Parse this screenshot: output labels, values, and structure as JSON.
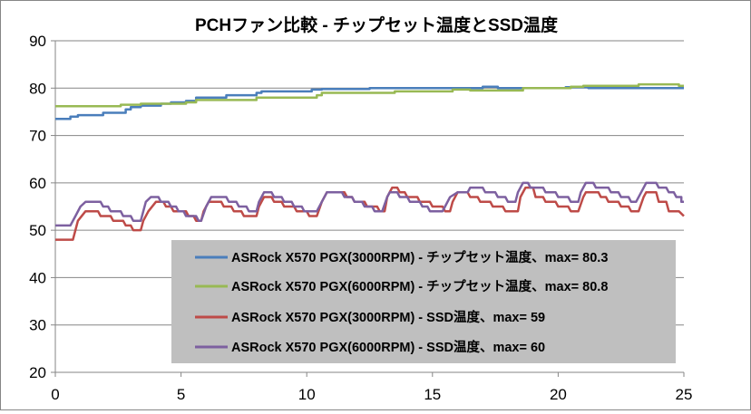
{
  "chart_data": {
    "type": "line",
    "title": "PCHファン比較 - チップセット温度とSSD温度",
    "xlabel": "",
    "ylabel": "",
    "xlim": [
      0,
      25
    ],
    "ylim": [
      20,
      90
    ],
    "x_ticks": [
      "0",
      "5",
      "10",
      "15",
      "20",
      "25"
    ],
    "y_ticks": [
      "20",
      "30",
      "40",
      "50",
      "60",
      "70",
      "80",
      "90"
    ],
    "grid": "horizontal",
    "legend_position": "bottom-right-inside",
    "series": [
      {
        "name": "ASRock X570 PGX(3000RPM) - チップセット温度、max= 80.3",
        "color": "#4a7ebb",
        "points": [
          [
            0,
            73.5
          ],
          [
            0.6,
            73.5
          ],
          [
            0.6,
            74
          ],
          [
            0.9,
            74
          ],
          [
            0.9,
            74.3
          ],
          [
            1.9,
            74.3
          ],
          [
            1.9,
            74.8
          ],
          [
            2.8,
            74.8
          ],
          [
            2.8,
            75.5
          ],
          [
            3.0,
            75.5
          ],
          [
            3.0,
            76
          ],
          [
            3.4,
            76
          ],
          [
            3.4,
            76.3
          ],
          [
            4.2,
            76.3
          ],
          [
            4.2,
            76.7
          ],
          [
            4.6,
            76.7
          ],
          [
            4.6,
            77
          ],
          [
            5.2,
            77
          ],
          [
            5.2,
            77.3
          ],
          [
            5.6,
            77.3
          ],
          [
            5.6,
            78
          ],
          [
            6.8,
            78
          ],
          [
            6.8,
            78.5
          ],
          [
            8.0,
            78.5
          ],
          [
            8.0,
            79
          ],
          [
            8.2,
            79
          ],
          [
            8.2,
            79.3
          ],
          [
            10.2,
            79.3
          ],
          [
            10.2,
            79.7
          ],
          [
            10.6,
            79.7
          ],
          [
            10.6,
            79.8
          ],
          [
            12.5,
            79.8
          ],
          [
            12.5,
            80
          ],
          [
            17.0,
            80
          ],
          [
            17.0,
            80.3
          ],
          [
            17.6,
            80.3
          ],
          [
            17.6,
            80
          ],
          [
            20.3,
            80
          ],
          [
            20.3,
            80.2
          ],
          [
            21.2,
            80.2
          ],
          [
            21.2,
            80
          ],
          [
            25,
            80
          ]
        ]
      },
      {
        "name": "ASRock X570 PGX(6000RPM) - チップセット温度、max= 80.8",
        "color": "#98b954",
        "points": [
          [
            0,
            76.2
          ],
          [
            2.6,
            76.2
          ],
          [
            2.6,
            76.5
          ],
          [
            3.4,
            76.5
          ],
          [
            3.4,
            76.7
          ],
          [
            5.2,
            76.7
          ],
          [
            5.2,
            77
          ],
          [
            5.6,
            77
          ],
          [
            5.6,
            77.5
          ],
          [
            8.0,
            77.5
          ],
          [
            8.0,
            78
          ],
          [
            8.6,
            78
          ],
          [
            8.6,
            78
          ],
          [
            10.4,
            78
          ],
          [
            10.4,
            78.5
          ],
          [
            10.6,
            78.5
          ],
          [
            10.6,
            79
          ],
          [
            13.5,
            79
          ],
          [
            13.5,
            79.3
          ],
          [
            15.8,
            79.3
          ],
          [
            15.8,
            79.7
          ],
          [
            16.5,
            79.7
          ],
          [
            16.5,
            79.5
          ],
          [
            18.6,
            79.5
          ],
          [
            18.6,
            80
          ],
          [
            20.5,
            80
          ],
          [
            20.5,
            80.3
          ],
          [
            21.0,
            80.3
          ],
          [
            21.0,
            80.5
          ],
          [
            23.2,
            80.5
          ],
          [
            23.2,
            80.8
          ],
          [
            24.8,
            80.8
          ],
          [
            24.8,
            80.5
          ],
          [
            25,
            80.5
          ]
        ]
      },
      {
        "name": "ASRock X570 PGX(3000RPM) - SSD温度、max= 59",
        "color": "#be4b48",
        "points": [
          [
            0,
            48
          ],
          [
            0.7,
            48
          ],
          [
            0.9,
            52
          ],
          [
            1.2,
            54
          ],
          [
            1.7,
            54
          ],
          [
            1.8,
            53
          ],
          [
            2.2,
            53
          ],
          [
            2.3,
            52
          ],
          [
            2.7,
            52
          ],
          [
            2.8,
            51
          ],
          [
            3.0,
            51
          ],
          [
            3.1,
            50
          ],
          [
            3.4,
            50
          ],
          [
            3.5,
            52
          ],
          [
            3.7,
            54
          ],
          [
            4.0,
            56
          ],
          [
            4.3,
            56
          ],
          [
            4.4,
            55
          ],
          [
            4.6,
            55
          ],
          [
            4.7,
            54
          ],
          [
            5.2,
            54
          ],
          [
            5.3,
            53
          ],
          [
            5.5,
            53
          ],
          [
            5.6,
            52
          ],
          [
            5.8,
            52
          ],
          [
            5.9,
            54
          ],
          [
            6.1,
            56
          ],
          [
            6.6,
            56
          ],
          [
            6.7,
            55
          ],
          [
            7.0,
            55
          ],
          [
            7.1,
            54
          ],
          [
            7.4,
            54
          ],
          [
            7.5,
            53
          ],
          [
            8.0,
            53
          ],
          [
            8.1,
            55
          ],
          [
            8.3,
            57
          ],
          [
            8.6,
            57
          ],
          [
            8.7,
            56
          ],
          [
            9.0,
            56
          ],
          [
            9.1,
            55
          ],
          [
            9.5,
            55
          ],
          [
            9.6,
            54
          ],
          [
            10.0,
            54
          ],
          [
            10.1,
            53
          ],
          [
            10.4,
            53
          ],
          [
            10.6,
            56
          ],
          [
            10.8,
            58
          ],
          [
            11.5,
            58
          ],
          [
            11.6,
            57
          ],
          [
            11.8,
            57
          ],
          [
            11.9,
            56
          ],
          [
            12.3,
            56
          ],
          [
            12.4,
            55
          ],
          [
            12.8,
            55
          ],
          [
            12.9,
            54
          ],
          [
            13.1,
            54
          ],
          [
            13.2,
            57
          ],
          [
            13.4,
            59
          ],
          [
            13.6,
            59
          ],
          [
            13.7,
            58
          ],
          [
            13.9,
            58
          ],
          [
            14.0,
            57
          ],
          [
            14.4,
            57
          ],
          [
            14.5,
            56
          ],
          [
            14.9,
            56
          ],
          [
            15.0,
            55
          ],
          [
            15.4,
            55
          ],
          [
            15.5,
            54
          ],
          [
            15.7,
            54
          ],
          [
            15.8,
            56
          ],
          [
            16.0,
            58
          ],
          [
            16.4,
            58
          ],
          [
            16.5,
            57
          ],
          [
            16.8,
            57
          ],
          [
            16.9,
            56
          ],
          [
            17.3,
            56
          ],
          [
            17.4,
            55
          ],
          [
            17.8,
            55
          ],
          [
            17.9,
            54
          ],
          [
            18.4,
            54
          ],
          [
            18.5,
            57
          ],
          [
            18.7,
            59
          ],
          [
            19.0,
            59
          ],
          [
            19.1,
            57
          ],
          [
            19.4,
            57
          ],
          [
            19.5,
            56
          ],
          [
            19.9,
            56
          ],
          [
            20.0,
            55
          ],
          [
            20.4,
            55
          ],
          [
            20.5,
            54
          ],
          [
            20.8,
            54
          ],
          [
            21.0,
            57
          ],
          [
            21.1,
            58
          ],
          [
            21.6,
            58
          ],
          [
            21.7,
            57
          ],
          [
            21.9,
            57
          ],
          [
            22.0,
            56
          ],
          [
            22.4,
            56
          ],
          [
            22.5,
            55
          ],
          [
            22.8,
            55
          ],
          [
            22.9,
            54
          ],
          [
            23.2,
            54
          ],
          [
            23.4,
            57
          ],
          [
            23.5,
            58
          ],
          [
            23.9,
            58
          ],
          [
            24.0,
            56
          ],
          [
            24.3,
            56
          ],
          [
            24.4,
            54
          ],
          [
            24.8,
            54
          ],
          [
            25,
            53
          ]
        ]
      },
      {
        "name": "ASRock X570 PGX(6000RPM) - SSD温度、max= 60",
        "color": "#7d60a0",
        "points": [
          [
            0,
            51
          ],
          [
            0.6,
            51
          ],
          [
            0.8,
            53
          ],
          [
            1.0,
            55
          ],
          [
            1.2,
            56
          ],
          [
            1.8,
            56
          ],
          [
            1.9,
            55
          ],
          [
            2.1,
            55
          ],
          [
            2.2,
            54
          ],
          [
            2.6,
            54
          ],
          [
            2.7,
            53
          ],
          [
            3.0,
            53
          ],
          [
            3.1,
            52
          ],
          [
            3.4,
            52
          ],
          [
            3.5,
            54
          ],
          [
            3.6,
            56
          ],
          [
            3.8,
            57
          ],
          [
            4.1,
            57
          ],
          [
            4.2,
            56
          ],
          [
            4.5,
            56
          ],
          [
            4.6,
            55
          ],
          [
            4.8,
            55
          ],
          [
            4.9,
            54
          ],
          [
            5.1,
            54
          ],
          [
            5.2,
            53
          ],
          [
            5.6,
            53
          ],
          [
            5.7,
            52
          ],
          [
            5.8,
            52
          ],
          [
            6.0,
            55
          ],
          [
            6.2,
            57
          ],
          [
            6.8,
            57
          ],
          [
            6.9,
            56
          ],
          [
            7.2,
            56
          ],
          [
            7.3,
            55
          ],
          [
            7.6,
            55
          ],
          [
            7.7,
            54
          ],
          [
            8.0,
            54
          ],
          [
            8.1,
            56
          ],
          [
            8.3,
            58
          ],
          [
            8.6,
            58
          ],
          [
            8.7,
            57
          ],
          [
            9.0,
            57
          ],
          [
            9.1,
            56
          ],
          [
            9.4,
            56
          ],
          [
            9.5,
            55
          ],
          [
            9.8,
            55
          ],
          [
            9.9,
            54
          ],
          [
            10.4,
            54
          ],
          [
            10.6,
            56
          ],
          [
            10.8,
            58
          ],
          [
            11.4,
            58
          ],
          [
            11.5,
            57
          ],
          [
            11.8,
            57
          ],
          [
            11.9,
            56
          ],
          [
            12.2,
            56
          ],
          [
            12.3,
            55
          ],
          [
            12.6,
            55
          ],
          [
            12.7,
            54
          ],
          [
            13.0,
            54
          ],
          [
            13.2,
            57
          ],
          [
            13.3,
            58
          ],
          [
            13.6,
            58
          ],
          [
            13.7,
            57
          ],
          [
            14.0,
            57
          ],
          [
            14.1,
            56
          ],
          [
            14.5,
            56
          ],
          [
            14.6,
            55
          ],
          [
            14.8,
            55
          ],
          [
            14.9,
            54
          ],
          [
            15.4,
            54
          ],
          [
            15.5,
            55
          ],
          [
            15.7,
            57
          ],
          [
            16.0,
            58
          ],
          [
            16.4,
            58
          ],
          [
            16.5,
            59
          ],
          [
            17.0,
            59
          ],
          [
            17.1,
            58
          ],
          [
            17.5,
            58
          ],
          [
            17.6,
            57
          ],
          [
            17.9,
            57
          ],
          [
            18.0,
            56
          ],
          [
            18.3,
            56
          ],
          [
            18.4,
            58
          ],
          [
            18.6,
            60
          ],
          [
            18.8,
            60
          ],
          [
            18.9,
            59
          ],
          [
            19.4,
            59
          ],
          [
            19.5,
            58
          ],
          [
            19.9,
            58
          ],
          [
            20.0,
            57
          ],
          [
            20.4,
            57
          ],
          [
            20.5,
            56
          ],
          [
            20.8,
            56
          ],
          [
            20.9,
            58
          ],
          [
            21.1,
            60
          ],
          [
            21.4,
            60
          ],
          [
            21.5,
            59
          ],
          [
            22.0,
            59
          ],
          [
            22.1,
            58
          ],
          [
            22.4,
            58
          ],
          [
            22.5,
            57
          ],
          [
            22.8,
            57
          ],
          [
            22.9,
            56
          ],
          [
            23.1,
            56
          ],
          [
            23.3,
            58
          ],
          [
            23.5,
            60
          ],
          [
            23.9,
            60
          ],
          [
            24.0,
            59
          ],
          [
            24.3,
            59
          ],
          [
            24.4,
            58
          ],
          [
            24.6,
            58
          ],
          [
            24.7,
            57
          ],
          [
            24.9,
            57
          ],
          [
            24.9,
            56
          ],
          [
            25,
            56
          ]
        ]
      }
    ]
  }
}
